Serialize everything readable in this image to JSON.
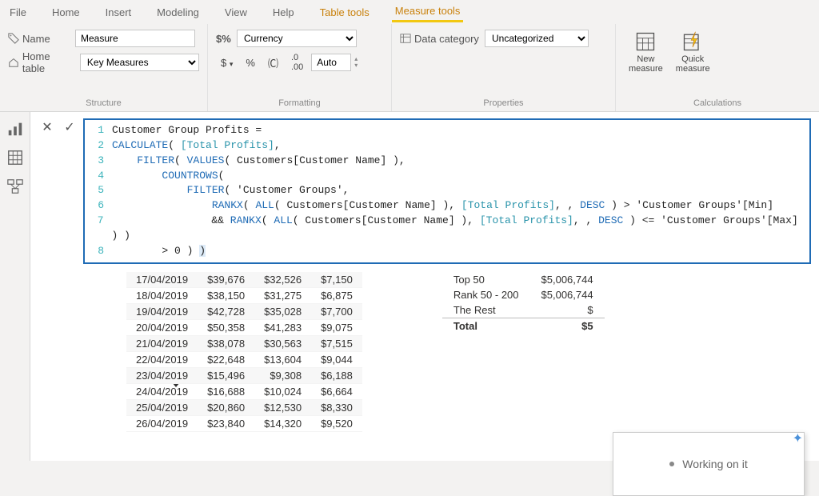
{
  "menu": {
    "file": "File",
    "home": "Home",
    "insert": "Insert",
    "modeling": "Modeling",
    "view": "View",
    "help": "Help",
    "tabletools": "Table tools",
    "measuretools": "Measure tools"
  },
  "structure": {
    "nameLabel": "Name",
    "nameValue": "Measure",
    "homeTableLabel": "Home table",
    "homeTableValue": "Key Measures",
    "group": "Structure"
  },
  "formatting": {
    "formatValue": "Currency",
    "autoLabel": "Auto",
    "group": "Formatting"
  },
  "properties": {
    "dataCatLabel": "Data category",
    "dataCatValue": "Uncategorized",
    "group": "Properties"
  },
  "calcs": {
    "newMeasure1": "New",
    "newMeasure2": "measure",
    "quick1": "Quick",
    "quick2": "measure",
    "group": "Calculations"
  },
  "formula": [
    {
      "n": "1",
      "html": "<span class='plain'>Customer Group Profits = </span>"
    },
    {
      "n": "2",
      "html": "<span class='kw'>CALCULATE</span><span class='plain'>( </span><span class='fld'>[Total Profits]</span><span class='plain'>,</span>"
    },
    {
      "n": "3",
      "html": "<span class='plain'>&nbsp;&nbsp;&nbsp;&nbsp;</span><span class='kw'>FILTER</span><span class='plain'>( </span><span class='kw'>VALUES</span><span class='plain'>( Customers[Customer Name] ),</span>"
    },
    {
      "n": "4",
      "html": "<span class='plain'>&nbsp;&nbsp;&nbsp;&nbsp;&nbsp;&nbsp;&nbsp;&nbsp;</span><span class='kw'>COUNTROWS</span><span class='plain'>(</span>"
    },
    {
      "n": "5",
      "html": "<span class='plain'>&nbsp;&nbsp;&nbsp;&nbsp;&nbsp;&nbsp;&nbsp;&nbsp;&nbsp;&nbsp;&nbsp;&nbsp;</span><span class='kw'>FILTER</span><span class='plain'>( 'Customer Groups',</span>"
    },
    {
      "n": "6",
      "html": "<span class='plain'>&nbsp;&nbsp;&nbsp;&nbsp;&nbsp;&nbsp;&nbsp;&nbsp;&nbsp;&nbsp;&nbsp;&nbsp;&nbsp;&nbsp;&nbsp;&nbsp;</span><span class='kw'>RANKX</span><span class='plain'>( </span><span class='kw'>ALL</span><span class='plain'>( Customers[Customer Name] ), </span><span class='fld'>[Total Profits]</span><span class='plain'>, , </span><span class='kw'>DESC</span><span class='plain'> ) &gt;  'Customer Groups'[Min]</span>"
    },
    {
      "n": "7",
      "html": "<span class='plain'>&nbsp;&nbsp;&nbsp;&nbsp;&nbsp;&nbsp;&nbsp;&nbsp;&nbsp;&nbsp;&nbsp;&nbsp;&nbsp;&nbsp;&nbsp;&nbsp;&amp;&amp; </span><span class='kw'>RANKX</span><span class='plain'>( </span><span class='kw'>ALL</span><span class='plain'>( Customers[Customer Name] ), </span><span class='fld'>[Total Profits]</span><span class='plain'>, , </span><span class='kw'>DESC</span><span class='plain'> ) &lt;= 'Customer Groups'[Max] ) )</span>"
    },
    {
      "n": "8",
      "html": "<span class='plain'>&nbsp;&nbsp;&nbsp;&nbsp;&nbsp;&nbsp;&nbsp;&nbsp;&gt; 0 ) <span style='background:#dceaf7'>)</span></span>"
    }
  ],
  "table1": [
    [
      "17/04/2019",
      "$39,676",
      "$32,526",
      "$7,150"
    ],
    [
      "18/04/2019",
      "$38,150",
      "$31,275",
      "$6,875"
    ],
    [
      "19/04/2019",
      "$42,728",
      "$35,028",
      "$7,700"
    ],
    [
      "20/04/2019",
      "$50,358",
      "$41,283",
      "$9,075"
    ],
    [
      "21/04/2019",
      "$38,078",
      "$30,563",
      "$7,515"
    ],
    [
      "22/04/2019",
      "$22,648",
      "$13,604",
      "$9,044"
    ],
    [
      "23/04/2019",
      "$15,496",
      "$9,308",
      "$6,188"
    ],
    [
      "24/04/2019",
      "$16,688",
      "$10,024",
      "$6,664"
    ],
    [
      "25/04/2019",
      "$20,860",
      "$12,530",
      "$8,330"
    ],
    [
      "26/04/2019",
      "$23,840",
      "$14,320",
      "$9,520"
    ]
  ],
  "table2": [
    [
      "Top 50",
      "$5,006,744"
    ],
    [
      "Rank 50 - 200",
      "$5,006,744"
    ],
    [
      "The Rest",
      "$"
    ],
    [
      "Total",
      "$5"
    ]
  ],
  "popup": "Working on it",
  "colors": {
    "accent": "#f2c811",
    "border": "#1f6bb5",
    "keyword": "#1f6bb5",
    "field": "#2893aa",
    "lineno": "#3bb3bb"
  }
}
